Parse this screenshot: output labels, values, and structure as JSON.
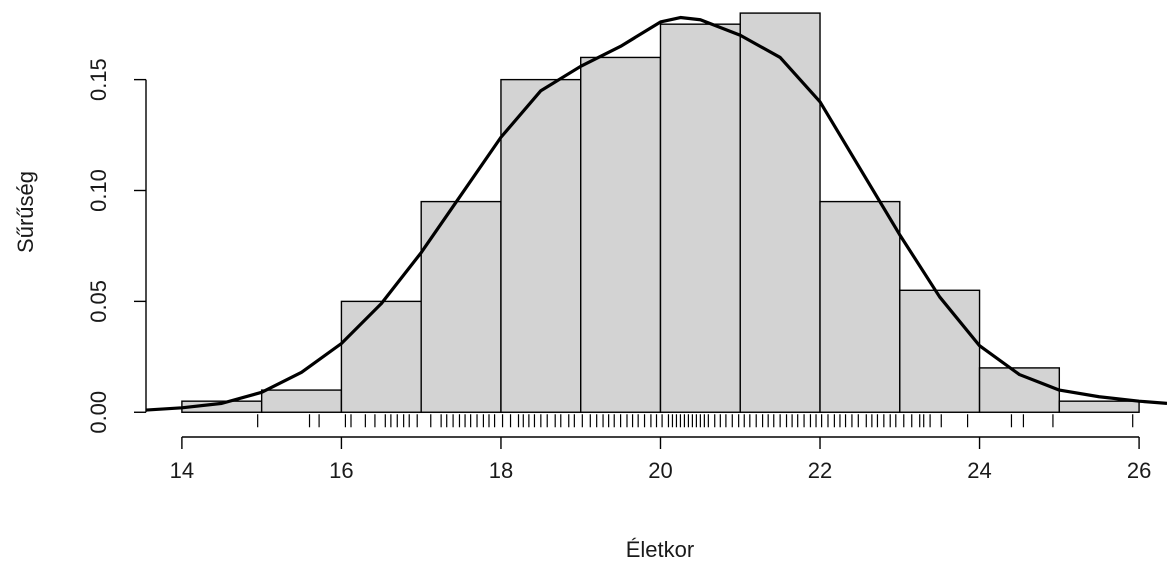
{
  "chart_data": {
    "type": "bar",
    "subtype": "histogram-with-density-and-rug",
    "xlabel": "Életkor",
    "ylabel": "Sűrűség",
    "xlim": [
      13.55,
      26.35
    ],
    "ylim": [
      -0.008,
      0.185
    ],
    "x_ticks": [
      14,
      16,
      18,
      20,
      22,
      24,
      26
    ],
    "x_tick_labels": [
      "14",
      "16",
      "18",
      "20",
      "22",
      "24",
      "26"
    ],
    "y_ticks": [
      0.0,
      0.05,
      0.1,
      0.15
    ],
    "y_tick_labels": [
      "0.00",
      "0.05",
      "0.10",
      "0.15"
    ],
    "bins": [
      {
        "start": 14,
        "end": 15,
        "density": 0.005
      },
      {
        "start": 15,
        "end": 16,
        "density": 0.01
      },
      {
        "start": 16,
        "end": 17,
        "density": 0.05
      },
      {
        "start": 17,
        "end": 18,
        "density": 0.095
      },
      {
        "start": 18,
        "end": 19,
        "density": 0.15
      },
      {
        "start": 19,
        "end": 20,
        "density": 0.16
      },
      {
        "start": 20,
        "end": 21,
        "density": 0.175
      },
      {
        "start": 21,
        "end": 22,
        "density": 0.18
      },
      {
        "start": 22,
        "end": 23,
        "density": 0.095
      },
      {
        "start": 23,
        "end": 24,
        "density": 0.055
      },
      {
        "start": 24,
        "end": 25,
        "density": 0.02
      },
      {
        "start": 25,
        "end": 26,
        "density": 0.005
      }
    ],
    "density_curve": {
      "x": [
        13.55,
        14.0,
        14.5,
        15.0,
        15.5,
        16.0,
        16.5,
        17.0,
        17.5,
        18.0,
        18.5,
        19.0,
        19.5,
        20.0,
        20.25,
        20.5,
        21.0,
        21.5,
        22.0,
        22.5,
        23.0,
        23.5,
        24.0,
        24.5,
        25.0,
        25.5,
        26.0,
        26.35
      ],
      "y": [
        0.001,
        0.002,
        0.004,
        0.009,
        0.018,
        0.031,
        0.049,
        0.072,
        0.098,
        0.124,
        0.145,
        0.156,
        0.165,
        0.176,
        0.178,
        0.177,
        0.17,
        0.16,
        0.14,
        0.11,
        0.08,
        0.052,
        0.03,
        0.017,
        0.01,
        0.007,
        0.005,
        0.004
      ]
    },
    "rug": [
      14.95,
      15.6,
      15.72,
      16.05,
      16.12,
      16.3,
      16.42,
      16.55,
      16.62,
      16.7,
      16.78,
      16.85,
      16.95,
      17.12,
      17.25,
      17.32,
      17.4,
      17.48,
      17.55,
      17.62,
      17.7,
      17.78,
      17.85,
      17.92,
      18.02,
      18.12,
      18.22,
      18.28,
      18.35,
      18.42,
      18.5,
      18.58,
      18.68,
      18.75,
      18.85,
      18.92,
      19.02,
      19.12,
      19.2,
      19.28,
      19.35,
      19.42,
      19.5,
      19.58,
      19.65,
      19.72,
      19.8,
      19.88,
      19.95,
      20.02,
      20.1,
      20.15,
      20.2,
      20.25,
      20.3,
      20.35,
      20.4,
      20.45,
      20.5,
      20.55,
      20.6,
      20.68,
      20.75,
      20.82,
      20.9,
      20.98,
      21.05,
      21.12,
      21.2,
      21.28,
      21.35,
      21.42,
      21.5,
      21.58,
      21.65,
      21.72,
      21.8,
      21.88,
      21.95,
      22.02,
      22.1,
      22.18,
      22.25,
      22.32,
      22.4,
      22.48,
      22.58,
      22.65,
      22.72,
      22.8,
      22.88,
      22.95,
      23.05,
      23.15,
      23.25,
      23.3,
      23.38,
      23.52,
      23.85,
      24.4,
      24.55,
      24.92,
      25.92
    ]
  }
}
